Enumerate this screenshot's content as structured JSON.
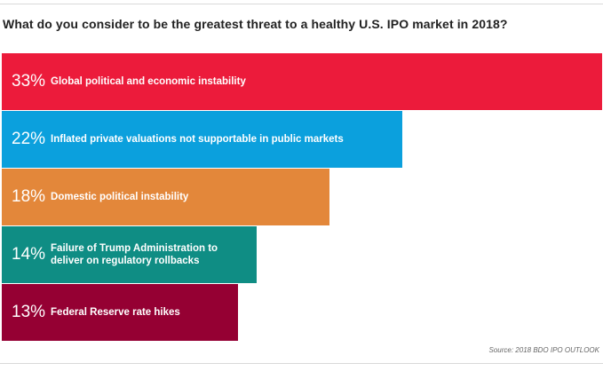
{
  "title": "What do you consider to be the greatest threat to a healthy U.S. IPO market in 2018?",
  "source": "Source: 2018 BDO IPO OUTLOOK",
  "chart_data": {
    "type": "bar",
    "orientation": "horizontal",
    "title": "What do you consider to be the greatest threat to a healthy U.S. IPO market in 2018?",
    "categories": [
      "Global political and economic instability",
      "Inflated private valuations not supportable in public markets",
      "Domestic political instability",
      "Failure of Trump Administration to deliver on regulatory rollbacks",
      "Federal Reserve rate hikes"
    ],
    "values": [
      33,
      22,
      18,
      14,
      13
    ],
    "value_labels": [
      "33%",
      "22%",
      "18%",
      "14%",
      "13%"
    ],
    "colors": [
      "#ec1b3b",
      "#0ba0dd",
      "#e3873a",
      "#0f8d84",
      "#950033"
    ],
    "xlabel": "",
    "ylabel": "",
    "xlim": [
      0,
      33
    ],
    "grid": false,
    "legend": "none"
  }
}
